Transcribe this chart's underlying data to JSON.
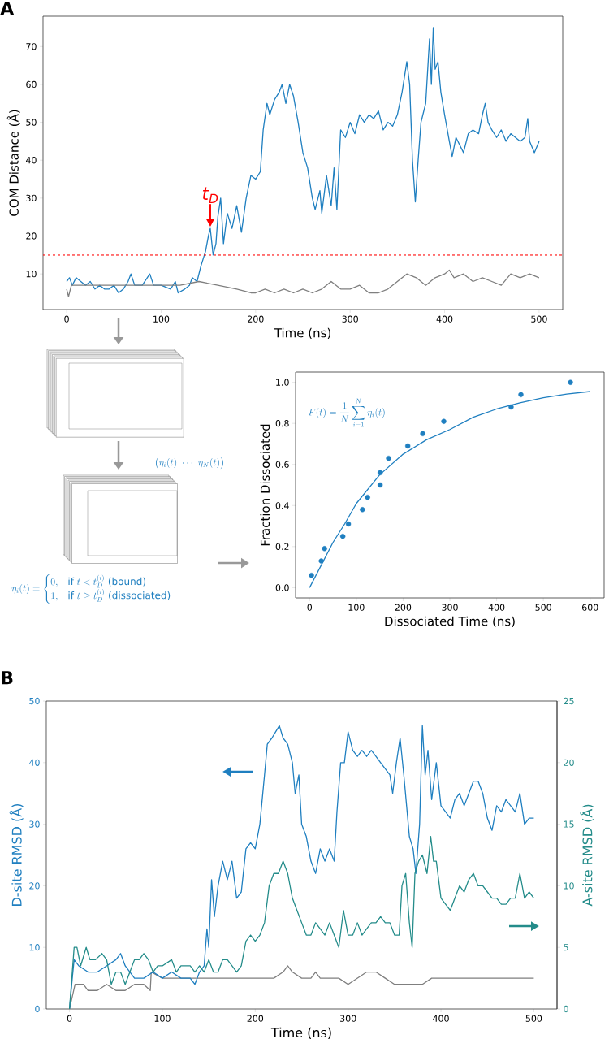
{
  "chart_data": [
    {
      "type": "line",
      "title": "A",
      "xlabel": "Time (ns)",
      "ylabel": "COM Distance (Å)",
      "xlim": [
        -25,
        525
      ],
      "ylim": [
        0.6,
        78
      ],
      "xticks": [
        0,
        100,
        200,
        300,
        400,
        500
      ],
      "yticks": [
        10,
        20,
        30,
        40,
        50,
        60,
        70
      ],
      "series": [
        {
          "color": "#1f7fc0",
          "x": [
            0,
            3,
            6,
            10,
            15,
            20,
            25,
            30,
            35,
            40,
            45,
            50,
            55,
            60,
            65,
            68,
            72,
            80,
            88,
            92,
            100,
            110,
            115,
            118,
            125,
            130,
            133,
            138,
            142,
            147,
            150,
            152,
            155,
            158,
            160,
            163,
            166,
            170,
            175,
            180,
            185,
            190,
            195,
            200,
            205,
            208,
            212,
            215,
            220,
            225,
            228,
            232,
            236,
            240,
            245,
            250,
            255,
            260,
            263,
            268,
            270,
            275,
            280,
            283,
            286,
            290,
            295,
            300,
            305,
            310,
            315,
            320,
            325,
            330,
            335,
            340,
            345,
            350,
            355,
            360,
            363,
            366,
            369,
            372,
            375,
            380,
            384,
            386,
            388,
            390,
            393,
            396,
            400,
            405,
            408,
            412,
            416,
            420,
            425,
            430,
            436,
            440,
            443,
            446,
            450,
            455,
            460,
            465,
            470,
            475,
            480,
            485,
            488,
            490,
            495,
            500
          ],
          "values": [
            8,
            9,
            7,
            9,
            8,
            7,
            8,
            6,
            7,
            6,
            6,
            7,
            5,
            6,
            8,
            10,
            7,
            7,
            10,
            7,
            7,
            6,
            8,
            5,
            6,
            7,
            9,
            8,
            12,
            16,
            20,
            22,
            15,
            18,
            25,
            30,
            18,
            26,
            22,
            28,
            21,
            30,
            36,
            35,
            37,
            48,
            55,
            52,
            56,
            58,
            60,
            55,
            60,
            57,
            50,
            42,
            38,
            30,
            27,
            32,
            26,
            36,
            28,
            38,
            27,
            48,
            46,
            50,
            47,
            52,
            50,
            52,
            51,
            53,
            48,
            50,
            49,
            52,
            58,
            66,
            60,
            40,
            29,
            40,
            50,
            55,
            72,
            60,
            75,
            64,
            66,
            58,
            52,
            45,
            41,
            46,
            44,
            42,
            47,
            48,
            47,
            52,
            55,
            50,
            48,
            46,
            48,
            45,
            47,
            46,
            45,
            46,
            51,
            45,
            42,
            45
          ]
        },
        {
          "color": "#7f7f7f",
          "x": [
            0,
            2,
            5,
            20,
            40,
            60,
            80,
            100,
            120,
            140,
            160,
            180,
            195,
            200,
            210,
            220,
            230,
            240,
            250,
            260,
            270,
            280,
            290,
            300,
            310,
            320,
            330,
            340,
            350,
            360,
            370,
            380,
            390,
            400,
            405,
            410,
            420,
            430,
            440,
            450,
            460,
            470,
            480,
            490,
            500
          ],
          "values": [
            6,
            4,
            7,
            7,
            7,
            7,
            7,
            7,
            7,
            8,
            7,
            6,
            5,
            5,
            6,
            5,
            6,
            5,
            6,
            5,
            6,
            8,
            6,
            6,
            7,
            5,
            5,
            6,
            8,
            10,
            9,
            7,
            9,
            10,
            11,
            9,
            10,
            8,
            9,
            8,
            7,
            10,
            9,
            10,
            9
          ]
        }
      ],
      "ref_lines": [
        {
          "axis": "y",
          "value": 15,
          "color": "#ff0000",
          "line_style": "dashed"
        }
      ],
      "annotations": [
        {
          "text": "t$_{D}$",
          "x": 152,
          "y": 22
        }
      ]
    },
    {
      "type": "scatter",
      "xlabel": "Dissociated Time (ns)",
      "ylabel": "Fraction Dissociated",
      "xlim": [
        -30,
        630
      ],
      "ylim": [
        -0.05,
        1.05
      ],
      "xticks": [
        0,
        100,
        200,
        300,
        400,
        500,
        600
      ],
      "yticks": [
        {
          "value": 0,
          "label": "0.0"
        },
        0.2,
        0.4,
        0.6,
        0.8,
        {
          "value": 1,
          "label": "1.0"
        }
      ],
      "series": [
        {
          "color": "#1f7fc0",
          "marker": "circle",
          "x": [
            4,
            25,
            32,
            71,
            83,
            113,
            124,
            151,
            151,
            169,
            210,
            242,
            287,
            431,
            452,
            558
          ],
          "values": [
            0.06,
            0.13,
            0.19,
            0.25,
            0.31,
            0.38,
            0.44,
            0.5,
            0.56,
            0.63,
            0.69,
            0.75,
            0.81,
            0.88,
            0.94,
            1.0
          ]
        },
        {
          "type": "line",
          "color": "#1f7fc0",
          "x": [
            0,
            25,
            50,
            75,
            100,
            125,
            150,
            200,
            250,
            300,
            350,
            400,
            450,
            500,
            550,
            600
          ],
          "values": [
            0,
            0.11,
            0.22,
            0.31,
            0.41,
            0.48,
            0.55,
            0.65,
            0.72,
            0.77,
            0.83,
            0.87,
            0.9,
            0.925,
            0.943,
            0.955
          ]
        }
      ],
      "annotations": [
        "F(t) = \\frac{1}{N}\\sum_{i=1}^{N}\\eta_i(t)",
        "\\big(\\eta_i(t)\\ \\cdots\\ \\eta_N(t)\\big)",
        "\\eta_i(t) = \\begin{cases} 0, & \\text{if } t < t_D^{(i)} \\text{ (bound)}\\\\ 1, & \\text{if } t \\geq t_D^{(i)} \\text{ (dissociated)}\\end{cases}"
      ]
    },
    {
      "type": "line",
      "title": "B",
      "xlabel": "Time (ns)",
      "ylabel": "D-site RMSD (Å)",
      "y2label": "A-site RMSD (Å)",
      "xlim": [
        -25,
        525
      ],
      "ylim": [
        0,
        50
      ],
      "y2lim": [
        0,
        25
      ],
      "xticks": [
        0,
        100,
        200,
        300,
        400,
        500
      ],
      "yticks": [
        0,
        10,
        20,
        30,
        40,
        50
      ],
      "y2ticks": [
        0,
        5,
        10,
        15,
        20,
        25
      ],
      "series": [
        {
          "color": "#7f7f7f",
          "x": [
            0,
            3,
            6,
            10,
            15,
            20,
            30,
            40,
            50,
            60,
            70,
            80,
            87,
            88,
            100,
            110,
            120,
            130,
            150,
            160,
            170,
            180,
            190,
            200,
            210,
            220,
            230,
            235,
            240,
            250,
            260,
            265,
            270,
            280,
            290,
            300,
            310,
            320,
            330,
            340,
            350,
            360,
            370,
            380,
            390,
            400,
            410,
            420,
            430,
            440,
            450,
            460,
            470,
            480,
            490,
            500
          ],
          "values": [
            0,
            2,
            4,
            4,
            4,
            3,
            3,
            4,
            3,
            3,
            4,
            4,
            3,
            6,
            5,
            5,
            5,
            5,
            5,
            5,
            5,
            5,
            5,
            5,
            5,
            5,
            6,
            7,
            6,
            5,
            5,
            6,
            5,
            5,
            5,
            4,
            5,
            6,
            6,
            5,
            4,
            4,
            4,
            4,
            5,
            5,
            5,
            5,
            5,
            5,
            5,
            5,
            5,
            5,
            5,
            5
          ]
        },
        {
          "color": "#1f7fc0",
          "x": [
            0,
            3,
            5,
            10,
            20,
            30,
            40,
            50,
            55,
            60,
            70,
            80,
            90,
            100,
            110,
            120,
            130,
            135,
            140,
            145,
            148,
            150,
            153,
            156,
            160,
            165,
            170,
            175,
            180,
            185,
            190,
            195,
            200,
            205,
            210,
            213,
            218,
            222,
            226,
            230,
            235,
            240,
            243,
            247,
            250,
            255,
            260,
            265,
            270,
            275,
            280,
            285,
            288,
            292,
            296,
            300,
            305,
            310,
            315,
            320,
            325,
            330,
            335,
            340,
            345,
            348,
            352,
            356,
            360,
            363,
            366,
            370,
            373,
            377,
            380,
            383,
            386,
            390,
            395,
            400,
            405,
            410,
            415,
            420,
            425,
            430,
            435,
            440,
            445,
            450,
            455,
            460,
            465,
            470,
            475,
            480,
            485,
            490,
            495,
            500
          ],
          "values": [
            0,
            5,
            8,
            7,
            6,
            6,
            7,
            8,
            9,
            7,
            5,
            5,
            6,
            5,
            6,
            5,
            5,
            4,
            6,
            7,
            13,
            10,
            21,
            15,
            20,
            24,
            21,
            24,
            18,
            19,
            26,
            27,
            26,
            30,
            38,
            43,
            44,
            45,
            46,
            44,
            43,
            40,
            35,
            38,
            30,
            28,
            24,
            22,
            26,
            24,
            26,
            24,
            32,
            40,
            40,
            45,
            42,
            41,
            42,
            41,
            42,
            41,
            40,
            39,
            38,
            35,
            40,
            44,
            38,
            33,
            28,
            26,
            22,
            30,
            46,
            38,
            42,
            34,
            40,
            33,
            32,
            31,
            34,
            35,
            33,
            35,
            37,
            37,
            35,
            31,
            29,
            33,
            32,
            34,
            33,
            32,
            35,
            30,
            31,
            31
          ]
        },
        {
          "color": "#248c8a",
          "axis": "y2",
          "x": [
            0,
            3,
            5,
            8,
            12,
            18,
            22,
            28,
            35,
            40,
            45,
            50,
            55,
            60,
            65,
            70,
            75,
            80,
            85,
            90,
            95,
            100,
            110,
            115,
            120,
            130,
            135,
            140,
            145,
            150,
            155,
            160,
            165,
            170,
            175,
            180,
            185,
            190,
            195,
            200,
            205,
            210,
            215,
            220,
            225,
            230,
            235,
            240,
            245,
            250,
            255,
            260,
            265,
            270,
            275,
            280,
            285,
            290,
            295,
            300,
            305,
            310,
            315,
            320,
            325,
            330,
            335,
            340,
            345,
            350,
            355,
            358,
            362,
            366,
            369,
            372,
            376,
            380,
            385,
            389,
            392,
            395,
            400,
            405,
            410,
            415,
            420,
            425,
            430,
            435,
            440,
            445,
            450,
            455,
            460,
            465,
            470,
            475,
            480,
            485,
            490,
            495,
            500
          ],
          "values": [
            0,
            3,
            5,
            5,
            3.5,
            5,
            4,
            4,
            4.5,
            4,
            2,
            3,
            3,
            2,
            3,
            4,
            4,
            4.5,
            4,
            3,
            3.5,
            3.5,
            4,
            3,
            3.5,
            3.5,
            3,
            3.5,
            3,
            4,
            3,
            3,
            4,
            4,
            3.5,
            3,
            3.5,
            5.5,
            6,
            5.5,
            6,
            7,
            10,
            11,
            11,
            12,
            11,
            9,
            8,
            7,
            6,
            6,
            7,
            6.5,
            6,
            7,
            6,
            5,
            8,
            6,
            6,
            7,
            6,
            6.5,
            7,
            7,
            7.5,
            7,
            7,
            6,
            6,
            10,
            11,
            7,
            5,
            11,
            12,
            12.5,
            11,
            14,
            12,
            12,
            9,
            8.5,
            8,
            9,
            10,
            9.5,
            10.5,
            11,
            10,
            10,
            9.5,
            9,
            9,
            8.5,
            8.5,
            9,
            9,
            11,
            9,
            9.5,
            9
          ]
        }
      ]
    }
  ]
}
